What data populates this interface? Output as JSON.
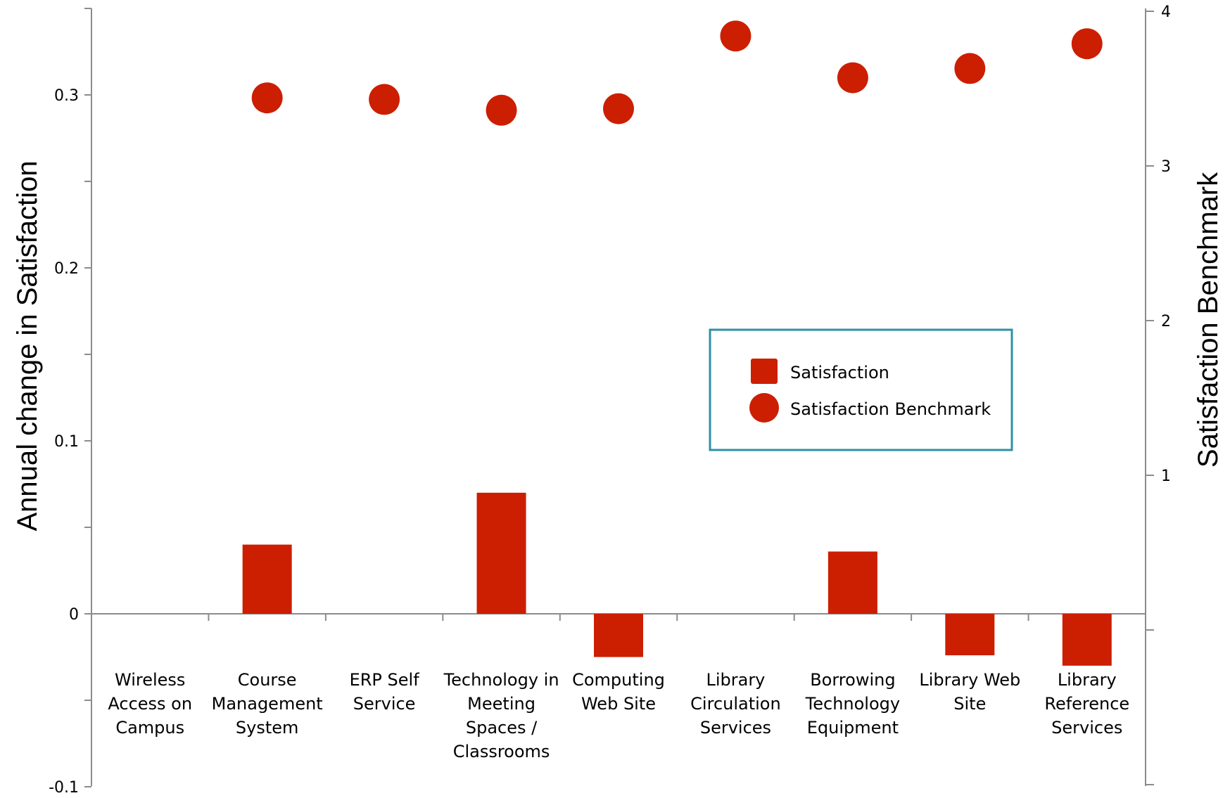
{
  "chart_data": {
    "type": "bar",
    "categories": [
      [
        "Wireless",
        "Access on",
        "Campus"
      ],
      [
        "Course",
        "Management",
        "System"
      ],
      [
        "ERP Self",
        "Service"
      ],
      [
        "Technology in",
        "Meeting",
        "Spaces /",
        "Classrooms"
      ],
      [
        "Computing",
        "Web Site"
      ],
      [
        "Library",
        "Circulation",
        "Services"
      ],
      [
        "Borrowing",
        "Technology",
        "Equipment"
      ],
      [
        "Library Web",
        "Site"
      ],
      [
        "Library",
        "Reference",
        "Services"
      ]
    ],
    "series": [
      {
        "name": "Satisfaction",
        "type": "bar",
        "axis": "left",
        "color": "#cc1e00",
        "values": [
          0,
          0.04,
          0,
          0.07,
          -0.025,
          0,
          0.036,
          -0.024,
          -0.03
        ]
      },
      {
        "name": "Satisfaction Benchmark",
        "type": "scatter",
        "axis": "right",
        "color": "#cc1e00",
        "values": [
          null,
          3.44,
          3.43,
          3.36,
          3.37,
          3.84,
          3.57,
          3.63,
          3.79
        ]
      }
    ],
    "ylabel": "Annual change in Satisfaction",
    "ylim": [
      -0.1,
      0.35
    ],
    "yticks": [
      "-0.1",
      "0",
      "0.1",
      "0.2",
      "0.3"
    ],
    "y2label": "Satisfaction Benchmark",
    "y2lim": [
      -1,
      4
    ],
    "y2ticks": [
      "1",
      "2",
      "3",
      "4"
    ],
    "legend": {
      "placement": "center-right",
      "border_color": "#2e90a8",
      "items": [
        "Satisfaction",
        "Satisfaction Benchmark"
      ]
    }
  }
}
